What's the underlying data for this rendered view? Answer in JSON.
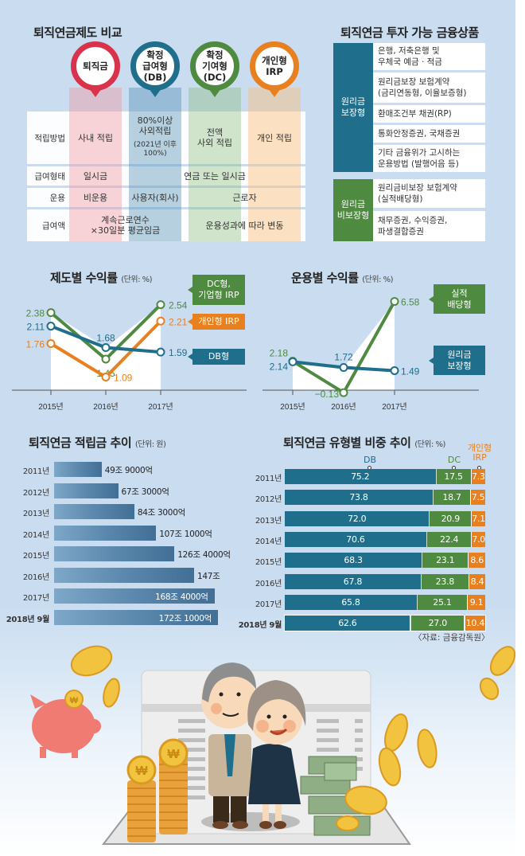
{
  "colors": {
    "severance": "#d8334a",
    "db": "#1f6e8c",
    "dc": "#4e8a3f",
    "irp": "#e8801f",
    "guaranteed": "#1f6e8c",
    "non_guaranteed": "#4e8a3f"
  },
  "comparison": {
    "title": "퇴직연금제도 비교",
    "columns": [
      {
        "label": "퇴직금",
        "color": "#d8334a"
      },
      {
        "label": "확정\n급여형\n(DB)",
        "color": "#1f6e8c"
      },
      {
        "label": "확정\n기여형\n(DC)",
        "color": "#4e8a3f"
      },
      {
        "label": "개인형\nIRP",
        "color": "#e8801f"
      }
    ],
    "rows": [
      {
        "label": "적립방법",
        "cells": [
          "사내 적립",
          "80%이상\n사외적립",
          "(2021년 이후\n100%)",
          "전액\n사외 적립",
          "개인 적립"
        ]
      },
      {
        "label": "급여형태",
        "cells": [
          "일시금",
          "연금 또는 일시금"
        ]
      },
      {
        "label": "운용",
        "cells": [
          "비운용",
          "사용자(회사)",
          "근로자"
        ]
      },
      {
        "label": "급여액",
        "cells": [
          "계속근로연수\n×30일분 평균임금",
          "운용성과에 따라 변동"
        ]
      }
    ]
  },
  "products": {
    "title": "퇴직연금 투자 가능 금융상품",
    "groups": [
      {
        "category": "원리금\n보장형",
        "items": [
          "은행, 저축은행 및\n우체국 예금 · 적금",
          "원리금보장 보험계약\n(금리연동형, 이율보증형)",
          "환매조건부 채권(RP)",
          "통화안정증권, 국채증권",
          "기타 금융위가 고시하는\n운용방법 (발행어음 등)"
        ]
      },
      {
        "category": "원리금\n비보장형",
        "items": [
          "원리금비보장 보험계약\n(실적배당형)",
          "채무증권, 수익증권,\n파생결합증권"
        ]
      }
    ]
  },
  "chart_data": [
    {
      "type": "line",
      "title": "제도별 수익률",
      "unit": "(단위: %)",
      "categories": [
        "2015년",
        "2016년",
        "2017년"
      ],
      "ylim": [
        0.7,
        2.9
      ],
      "grid": false,
      "series": [
        {
          "name": "DC형,\n기업형 IRP",
          "color": "#4e8a3f",
          "values": [
            2.38,
            1.45,
            2.54
          ],
          "labels": [
            "2.38",
            "1.45",
            "2.54"
          ]
        },
        {
          "name": "개인형 IRP",
          "color": "#e8801f",
          "values": [
            1.76,
            1.09,
            2.21
          ],
          "labels": [
            "1.76",
            "1.09",
            "2.21"
          ]
        },
        {
          "name": "DB형",
          "color": "#1f6e8c",
          "values": [
            2.11,
            1.68,
            1.59
          ],
          "labels": [
            "2.11",
            "1.68",
            "1.59"
          ]
        }
      ]
    },
    {
      "type": "line",
      "title": "운용별 수익률",
      "unit": "(단위: %)",
      "categories": [
        "2015년",
        "2016년",
        "2017년"
      ],
      "ylim": [
        -0.3,
        7.2
      ],
      "grid": false,
      "series": [
        {
          "name": "실적\n배당형",
          "color": "#4e8a3f",
          "values": [
            2.18,
            -0.13,
            6.58
          ],
          "labels": [
            "2.18",
            "−0.13",
            "6.58"
          ]
        },
        {
          "name": "원리금\n보장형",
          "color": "#1f6e8c",
          "values": [
            2.14,
            1.72,
            1.49
          ],
          "labels": [
            "2.14",
            "1.72",
            "1.49"
          ]
        }
      ]
    },
    {
      "type": "bar",
      "orientation": "horizontal",
      "title": "퇴직연금 적립금 추이",
      "unit": "(단위: 원)",
      "categories": [
        "2011년",
        "2012년",
        "2013년",
        "2014년",
        "2015년",
        "2016년",
        "2017년",
        "2018년 9월"
      ],
      "values_trillion_won": [
        49.9,
        67.3,
        84.3,
        107.1,
        126.4,
        147.0,
        168.4,
        172.1
      ],
      "labels": [
        "49조 9000억",
        "67조 3000억",
        "84조 3000억",
        "107조 1000억",
        "126조 4000억",
        "147조",
        "168조 4000억",
        "172조 1000억"
      ],
      "xlim": [
        0,
        172.1
      ]
    },
    {
      "type": "bar",
      "orientation": "horizontal",
      "stacked": true,
      "title": "퇴직연금 유형별 비중 추이",
      "unit": "(단위: %)",
      "categories": [
        "2011년",
        "2012년",
        "2013년",
        "2014년",
        "2015년",
        "2016년",
        "2017년",
        "2018년 9월"
      ],
      "legend": [
        "DB",
        "DC",
        "개인형\nIRP"
      ],
      "series": [
        {
          "name": "DB",
          "color": "#1f6e8c",
          "values": [
            75.2,
            73.8,
            72.0,
            70.6,
            68.3,
            67.8,
            65.8,
            62.6
          ]
        },
        {
          "name": "DC",
          "color": "#4e8a3f",
          "values": [
            17.5,
            18.7,
            20.9,
            22.4,
            23.1,
            23.8,
            25.1,
            27.0
          ]
        },
        {
          "name": "개인형 IRP",
          "color": "#e8801f",
          "values": [
            7.3,
            7.5,
            7.1,
            7.0,
            8.6,
            8.4,
            9.1,
            10.4
          ]
        }
      ],
      "xlim": [
        0,
        100
      ]
    }
  ],
  "source": "〈자료: 금융감독원〉",
  "illustration": {
    "description": "elderly couple with coin stacks, piggy bank, cash bundles and won coins",
    "coin_symbol": "₩"
  }
}
